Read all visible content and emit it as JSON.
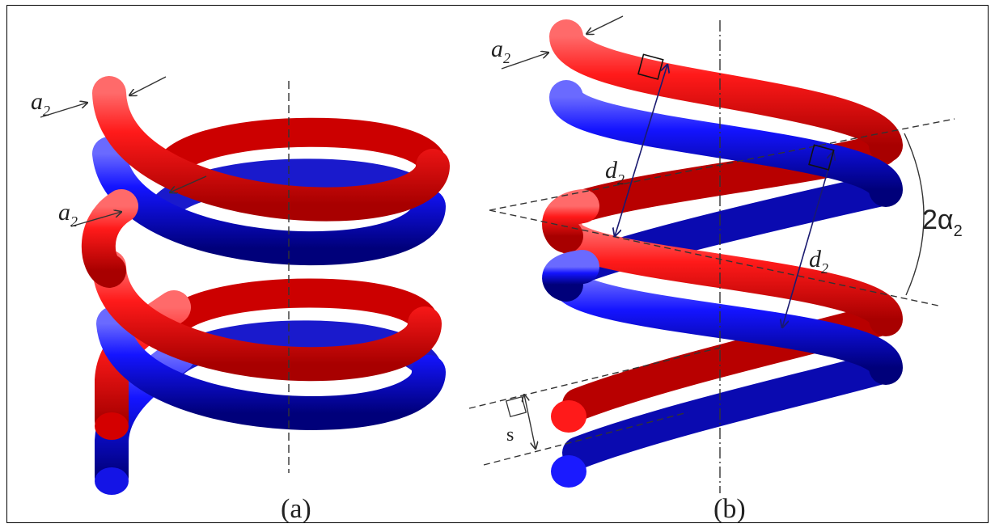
{
  "panels": {
    "a": {
      "caption": "(a)",
      "wire_label_main": "a",
      "wire_label_sub": "2",
      "wire_label2_main": "a",
      "wire_label2_sub": "2"
    },
    "b": {
      "caption": "(b)",
      "wire_label_main": "a",
      "wire_label_sub": "2",
      "distance_label_main": "d",
      "distance_label_sub": "2",
      "distance_label2_main": "d",
      "distance_label2_sub": "2",
      "angle_label_main": "2α",
      "angle_label_sub": "2",
      "gap_label": "s"
    }
  },
  "colors": {
    "strand_1": "#e60000",
    "strand_2": "#0a0af0",
    "axis_line": "#333333",
    "dimension_arrow": "#1a1a70"
  }
}
